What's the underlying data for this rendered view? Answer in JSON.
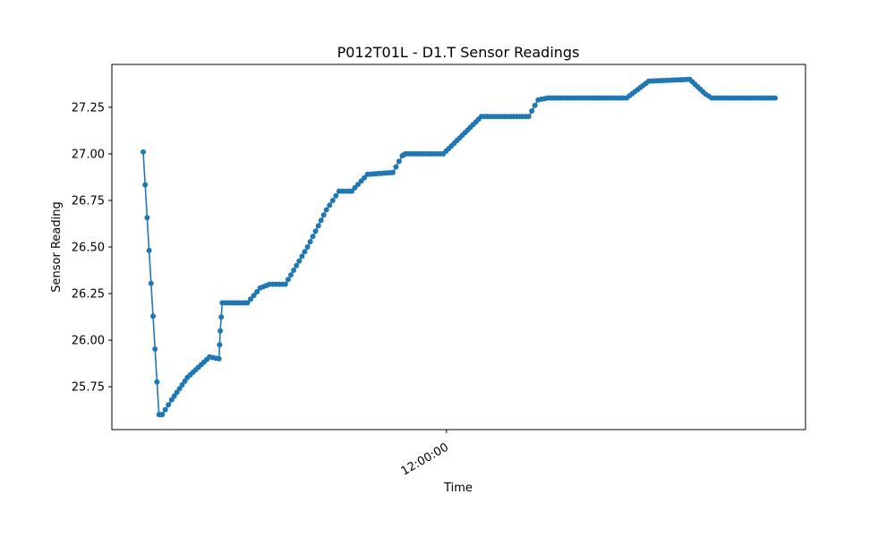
{
  "chart_data": {
    "type": "line",
    "title": "P012T01L - D1.T Sensor Readings",
    "xlabel": "Time",
    "ylabel": "Sensor Reading",
    "x_tick_labels": [
      {
        "label": "12:00:00",
        "value": 0.48
      }
    ],
    "y_ticks": [
      25.75,
      26.0,
      26.25,
      26.5,
      26.75,
      27.0,
      27.25
    ],
    "y_tick_labels": [
      "25.75",
      "26.00",
      "26.25",
      "26.50",
      "26.75",
      "27.00",
      "27.25"
    ],
    "xlim": [
      0,
      1
    ],
    "ylim": [
      25.52,
      27.48
    ],
    "grid": false,
    "series": [
      {
        "color": "#1f77b4",
        "marker": "circle",
        "keypoints": [
          [
            0.0,
            27.01
          ],
          [
            0.025,
            25.6
          ],
          [
            0.03,
            25.6
          ],
          [
            0.045,
            25.68
          ],
          [
            0.07,
            25.8
          ],
          [
            0.105,
            25.91
          ],
          [
            0.12,
            25.9
          ],
          [
            0.122,
            26.05
          ],
          [
            0.125,
            26.2
          ],
          [
            0.165,
            26.2
          ],
          [
            0.185,
            26.28
          ],
          [
            0.2,
            26.3
          ],
          [
            0.225,
            26.3
          ],
          [
            0.26,
            26.5
          ],
          [
            0.29,
            26.7
          ],
          [
            0.31,
            26.8
          ],
          [
            0.33,
            26.8
          ],
          [
            0.355,
            26.89
          ],
          [
            0.395,
            26.9
          ],
          [
            0.41,
            26.99
          ],
          [
            0.415,
            27.0
          ],
          [
            0.475,
            27.0
          ],
          [
            0.505,
            27.1
          ],
          [
            0.535,
            27.2
          ],
          [
            0.61,
            27.2
          ],
          [
            0.625,
            27.29
          ],
          [
            0.64,
            27.3
          ],
          [
            0.765,
            27.3
          ],
          [
            0.8,
            27.39
          ],
          [
            0.865,
            27.4
          ],
          [
            0.89,
            27.32
          ],
          [
            0.9,
            27.3
          ],
          [
            1.0,
            27.3
          ]
        ]
      }
    ]
  }
}
